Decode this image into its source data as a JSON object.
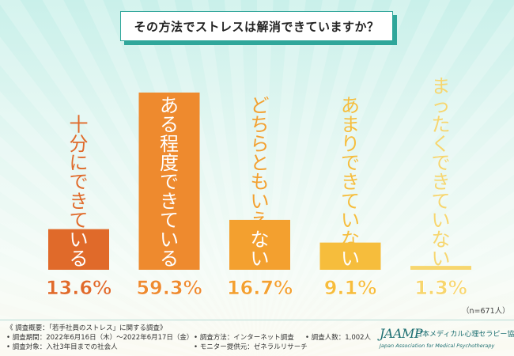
{
  "chart_data": {
    "type": "bar",
    "title": "その方法でストレスは解消できていますか？",
    "categories": [
      "十分にできている",
      "ある程度できている",
      "どちらともいえない",
      "あまりできていない",
      "まったくできていない"
    ],
    "values": [
      13.6,
      59.3,
      16.7,
      9.1,
      1.3
    ],
    "value_labels": [
      "13.6%",
      "59.3%",
      "16.7%",
      "9.1%",
      "1.3%"
    ],
    "colors": [
      "#e06a2a",
      "#ee8a2e",
      "#f3a02f",
      "#f6bd3c",
      "#f7d66e"
    ],
    "ylim": [
      0,
      59.3
    ],
    "sample_note": "（n=671人）"
  },
  "footer": {
    "survey_title": "《 調査概要：「若手社員のストレス」に関する調査》",
    "period": "• 調査期間：2022年6月16日（木）〜2022年6月17日（金）",
    "method": "• 調査方法：インターネット調査",
    "respondents": "• 調査人数：1,002人",
    "target": "• 調査対象：入社3年目までの社会人",
    "provider": "• モニター提供元：ゼネラルリサーチ"
  },
  "logo": {
    "mark": "JAAMP",
    "name_jp": "日本メディカル心理セラピー協会",
    "name_en": "Japan Association for Medical Psychotherapy"
  }
}
